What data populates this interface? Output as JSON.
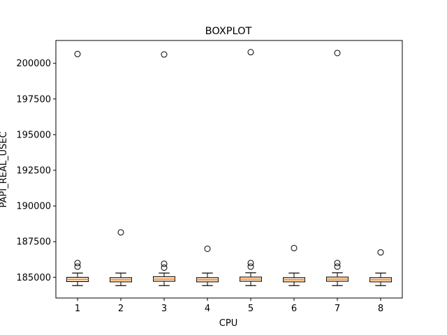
{
  "chart_data": {
    "type": "boxplot",
    "title": "BOXPLOT",
    "xlabel": "CPU",
    "ylabel": "PAPI_REAL_USEC",
    "categories": [
      "1",
      "2",
      "3",
      "4",
      "5",
      "6",
      "7",
      "8"
    ],
    "ylim": [
      183550,
      201600
    ],
    "yticks": [
      185000,
      187500,
      190000,
      192500,
      195000,
      197500,
      200000
    ],
    "ytick_labels": [
      "185000",
      "187500",
      "190000",
      "192500",
      "195000",
      "197500",
      "200000"
    ],
    "grid": false,
    "colors": {
      "box_fill": "#fde0c4",
      "median": "#ff7f0e",
      "stroke": "#000000"
    },
    "boxes": [
      {
        "category": "1",
        "whislo": 184420,
        "q1": 184700,
        "median": 184850,
        "q3": 185000,
        "whishi": 185300,
        "fliers": [
          200650,
          186000,
          185750
        ]
      },
      {
        "category": "2",
        "whislo": 184420,
        "q1": 184680,
        "median": 184830,
        "q3": 184980,
        "whishi": 185300,
        "fliers": [
          188150
        ]
      },
      {
        "category": "3",
        "whislo": 184420,
        "q1": 184720,
        "median": 184870,
        "q3": 185050,
        "whishi": 185300,
        "fliers": [
          200620,
          185950,
          185680
        ]
      },
      {
        "category": "4",
        "whislo": 184420,
        "q1": 184680,
        "median": 184830,
        "q3": 184980,
        "whishi": 185300,
        "fliers": [
          187000
        ]
      },
      {
        "category": "5",
        "whislo": 184420,
        "q1": 184720,
        "median": 184870,
        "q3": 185020,
        "whishi": 185320,
        "fliers": [
          200780,
          186000,
          185750
        ]
      },
      {
        "category": "6",
        "whislo": 184420,
        "q1": 184680,
        "median": 184830,
        "q3": 184980,
        "whishi": 185300,
        "fliers": [
          187050
        ]
      },
      {
        "category": "7",
        "whislo": 184420,
        "q1": 184720,
        "median": 184870,
        "q3": 185020,
        "whishi": 185320,
        "fliers": [
          200720,
          186000,
          185750
        ]
      },
      {
        "category": "8",
        "whislo": 184420,
        "q1": 184680,
        "median": 184830,
        "q3": 184980,
        "whishi": 185300,
        "fliers": [
          186750
        ]
      }
    ]
  }
}
